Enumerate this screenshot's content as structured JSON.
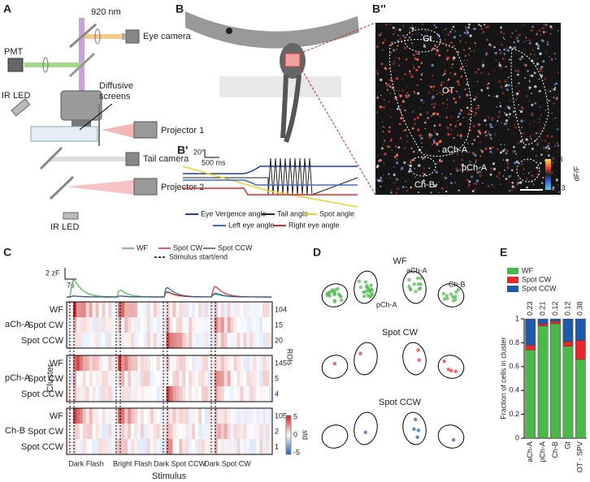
{
  "panel_labels": {
    "a": "A",
    "b": "B",
    "b2": "B''",
    "b1": "B'",
    "c": "C",
    "d": "D",
    "e": "E"
  },
  "panel_a": {
    "wavelength": "920 nm",
    "pmt": "PMT",
    "eye_camera": "Eye camera",
    "ir_led_top": "IR LED",
    "diffusive_screens": "Diffusive screens",
    "projector_1": "Projector 1",
    "tail_camera": "Tail camera",
    "projector_2": "Projector 2",
    "ir_led_bottom": "IR LED"
  },
  "panel_b2": {
    "regions": [
      "Gt",
      "OT",
      "aCh-A",
      "pCh-A",
      "Ch-B"
    ],
    "colorbar": [
      "2.3",
      "0",
      "-2.3"
    ],
    "colorbar_label": "dF/F"
  },
  "panel_b1": {
    "scale_angle": "20°",
    "scale_time": "500 ms",
    "legend": [
      "Eye Vergence angle",
      "Tail angle",
      "Spot angle",
      "Left eye angle",
      "Right eye angle"
    ]
  },
  "panel_c": {
    "legend": [
      "WF",
      "Spot CW",
      "Spot CCW",
      "Stimulus start/end"
    ],
    "scale_y": "2 zF",
    "scale_x": "7s",
    "clusters": [
      {
        "name": "aCh-A",
        "rows": [
          "WF",
          "Spot CW",
          "Spot CCW"
        ],
        "rois": [
          "104",
          "15",
          "20"
        ]
      },
      {
        "name": "pCh-A",
        "rows": [
          "WF",
          "Spot CW",
          "Spot CCW"
        ],
        "rois": [
          "145",
          "5",
          "4"
        ]
      },
      {
        "name": "Ch-B",
        "rows": [
          "WF",
          "Spot CW",
          "Spot CCW"
        ],
        "rois": [
          "105",
          "2",
          "1"
        ]
      }
    ],
    "rois_label": "ROIs",
    "colorbar": [
      "5",
      "0",
      "-5"
    ],
    "colorbar_label": "std",
    "y_label": "Cluster",
    "stimuli": [
      "Dark Flash",
      "Bright Flash",
      "Dark Spot CCW",
      "Dark Spot CW"
    ],
    "x_label": "Stimulus"
  },
  "panel_d": {
    "titles": [
      "WF",
      "Spot CW",
      "Spot CCW"
    ],
    "regions": [
      "aCh-A",
      "Ch-B",
      "pCh-A"
    ]
  },
  "chart_data": {
    "type": "bar",
    "stacked": true,
    "y_label": "Fraction of cells in cluster",
    "categories": [
      "aCh-A",
      "pCh-A",
      "Ch-B",
      "Gt",
      "OT - SPV"
    ],
    "series": [
      {
        "name": "WF",
        "color": "#4cb849",
        "values": [
          0.74,
          0.94,
          0.96,
          0.77,
          0.66
        ]
      },
      {
        "name": "Spot CW",
        "color": "#e8262c",
        "values": [
          0.04,
          0.02,
          0.02,
          0.04,
          0.16
        ]
      },
      {
        "name": "Spot CCW",
        "color": "#1f5aa8",
        "values": [
          0.22,
          0.04,
          0.02,
          0.19,
          0.18
        ]
      }
    ],
    "top_labels": [
      0.23,
      0.21,
      0.12,
      0.12,
      0.38
    ],
    "ylim": [
      0,
      1
    ],
    "yticks": [
      0,
      {
        "value": 0.2,
        "label": "0.2"
      },
      {
        "value": 0.4,
        "label": "0.4"
      },
      {
        "value": 0.6,
        "label": "0.6"
      },
      {
        "value": 0.8,
        "label": "0.8"
      },
      1
    ]
  }
}
